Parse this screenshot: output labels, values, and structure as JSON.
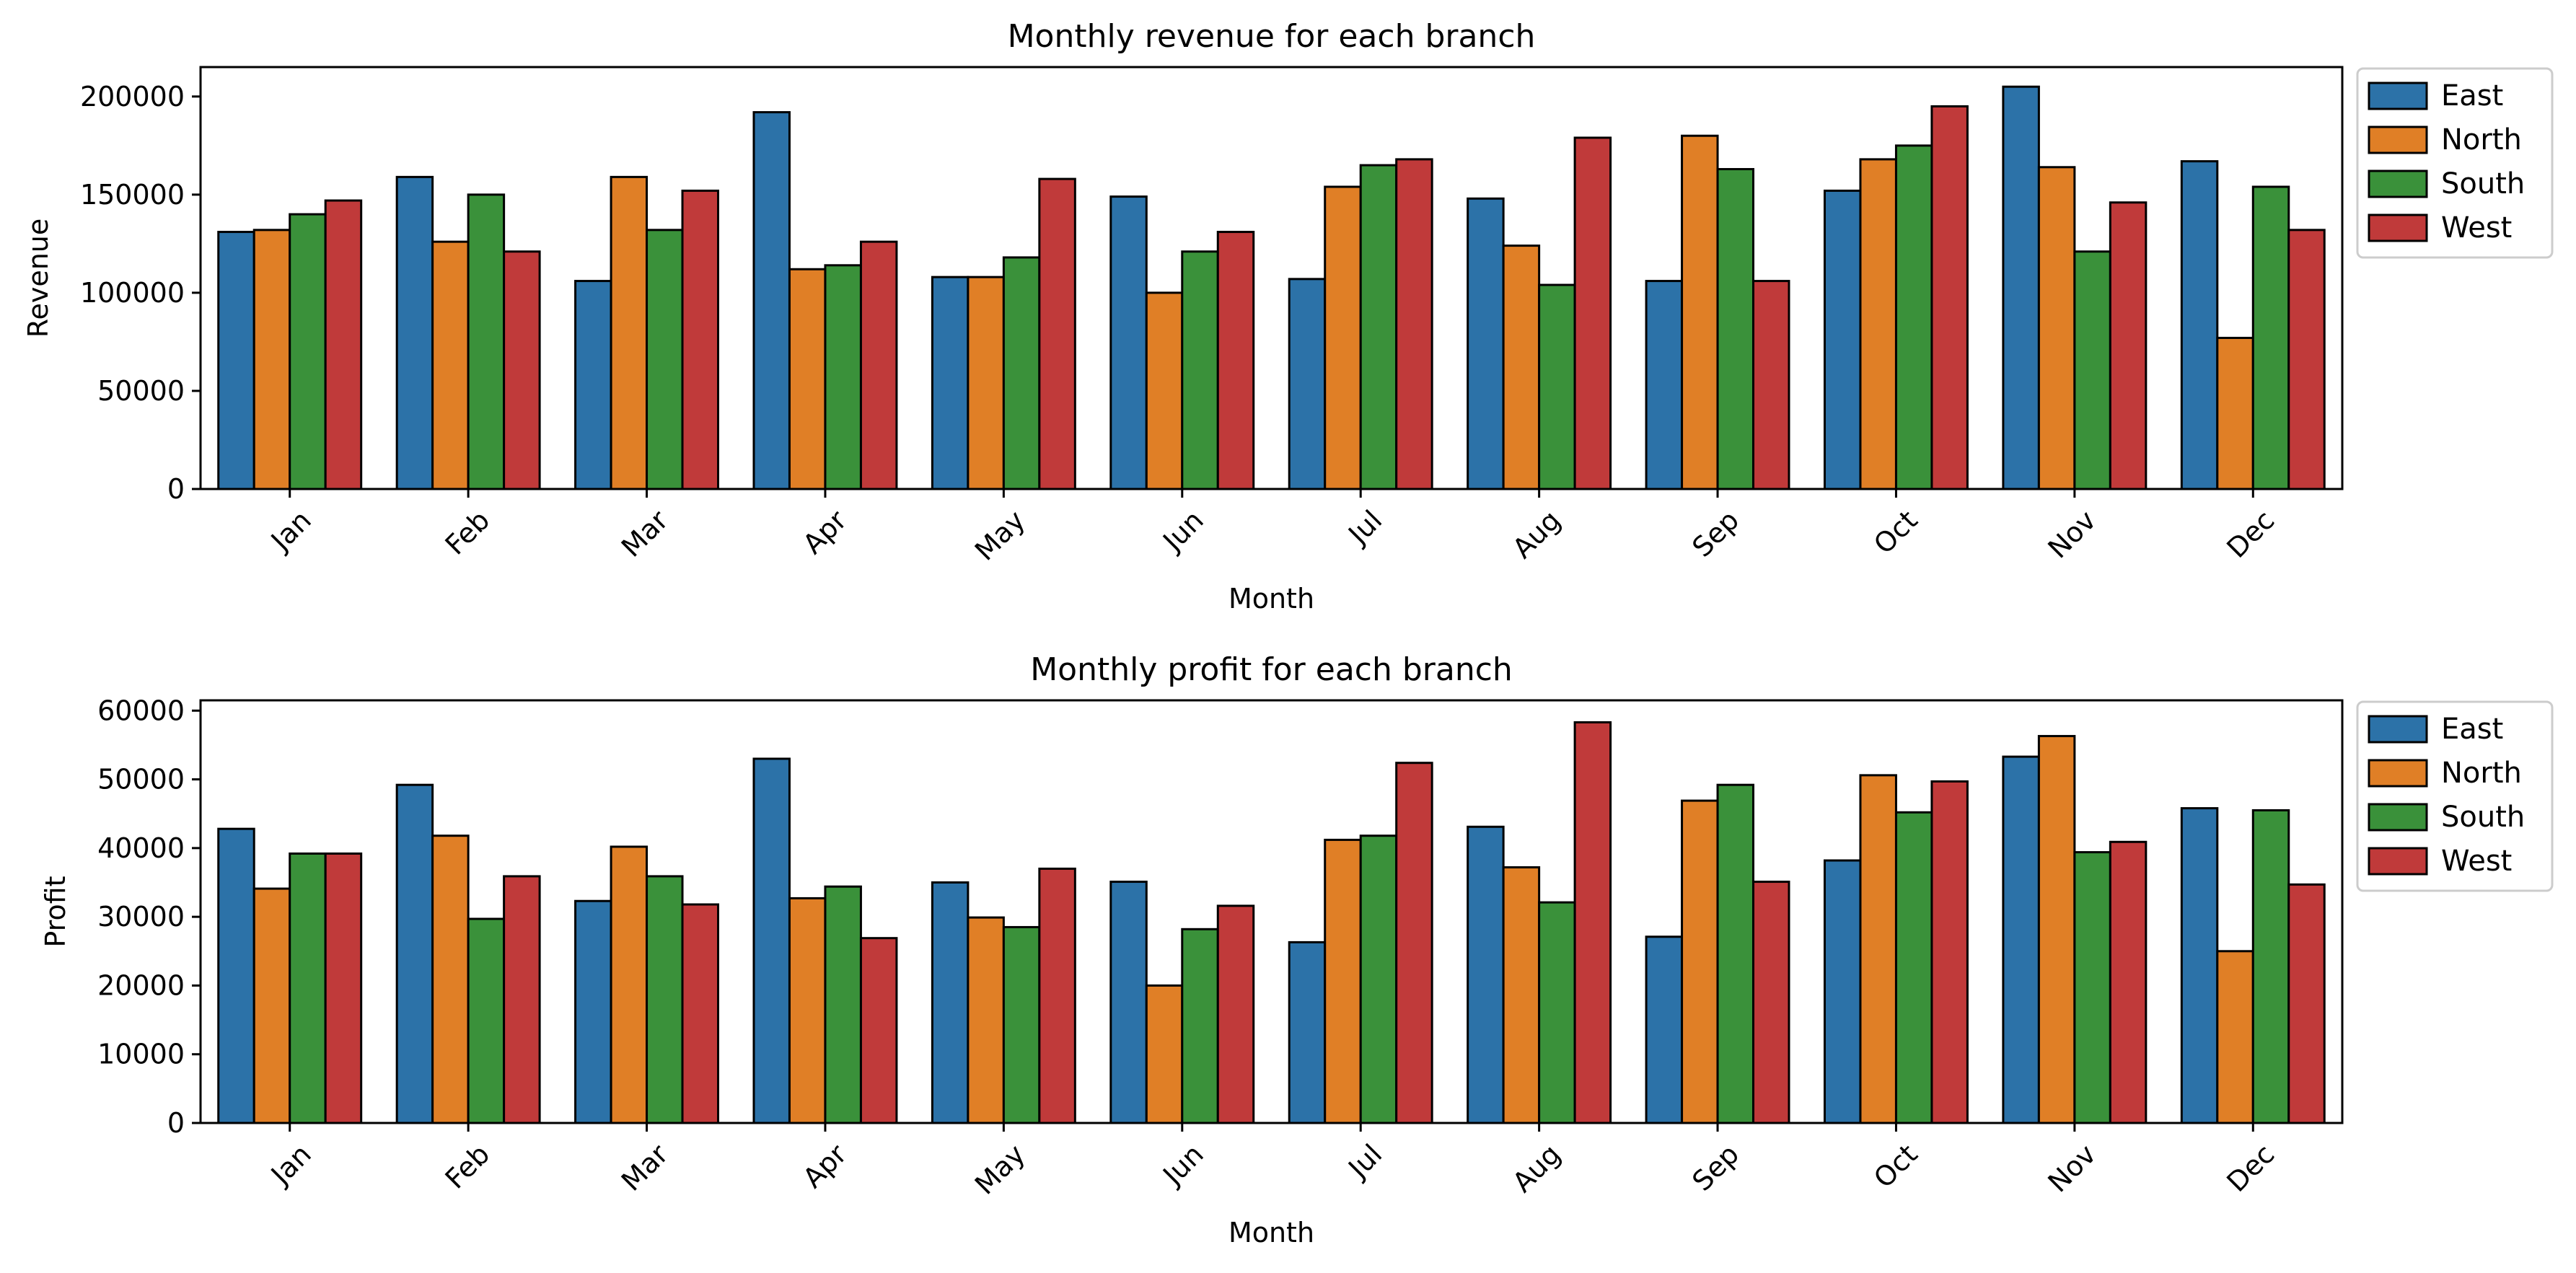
{
  "colors": {
    "East": "#2c72a8",
    "North": "#e07f26",
    "South": "#3a913a",
    "West": "#c03a3a"
  },
  "chart_data": [
    {
      "type": "bar",
      "title": "Monthly revenue for each branch",
      "xlabel": "Month",
      "ylabel": "Revenue",
      "ylim": [
        0,
        215000
      ],
      "yticks": [
        0,
        50000,
        100000,
        150000,
        200000
      ],
      "legend_position": "outside-top-right",
      "grid": false,
      "categories": [
        "Jan",
        "Feb",
        "Mar",
        "Apr",
        "May",
        "Jun",
        "Jul",
        "Aug",
        "Sep",
        "Oct",
        "Nov",
        "Dec"
      ],
      "series": [
        {
          "name": "East",
          "values": [
            131000,
            159000,
            106000,
            192000,
            108000,
            149000,
            107000,
            148000,
            106000,
            152000,
            205000,
            167000
          ]
        },
        {
          "name": "North",
          "values": [
            132000,
            126000,
            159000,
            112000,
            108000,
            100000,
            154000,
            124000,
            180000,
            168000,
            164000,
            77000
          ]
        },
        {
          "name": "South",
          "values": [
            140000,
            150000,
            132000,
            114000,
            118000,
            121000,
            165000,
            104000,
            163000,
            175000,
            121000,
            154000
          ]
        },
        {
          "name": "West",
          "values": [
            147000,
            121000,
            152000,
            126000,
            158000,
            131000,
            168000,
            179000,
            106000,
            195000,
            146000,
            132000
          ]
        }
      ]
    },
    {
      "type": "bar",
      "title": "Monthly profit for each branch",
      "xlabel": "Month",
      "ylabel": "Profit",
      "ylim": [
        0,
        61500
      ],
      "yticks": [
        0,
        10000,
        20000,
        30000,
        40000,
        50000,
        60000
      ],
      "legend_position": "outside-top-right",
      "grid": false,
      "categories": [
        "Jan",
        "Feb",
        "Mar",
        "Apr",
        "May",
        "Jun",
        "Jul",
        "Aug",
        "Sep",
        "Oct",
        "Nov",
        "Dec"
      ],
      "series": [
        {
          "name": "East",
          "values": [
            42800,
            49200,
            32300,
            53000,
            35000,
            35100,
            26300,
            43100,
            27100,
            38200,
            53300,
            45800
          ]
        },
        {
          "name": "North",
          "values": [
            34100,
            41800,
            40200,
            32700,
            29900,
            20000,
            41200,
            37200,
            46900,
            50600,
            56300,
            25000
          ]
        },
        {
          "name": "South",
          "values": [
            39200,
            29700,
            35900,
            34400,
            28500,
            28200,
            41800,
            32100,
            49200,
            45200,
            39400,
            45500
          ]
        },
        {
          "name": "West",
          "values": [
            39200,
            35900,
            31800,
            26900,
            37000,
            31600,
            52400,
            58300,
            35100,
            49700,
            40900,
            34700
          ]
        }
      ]
    }
  ]
}
